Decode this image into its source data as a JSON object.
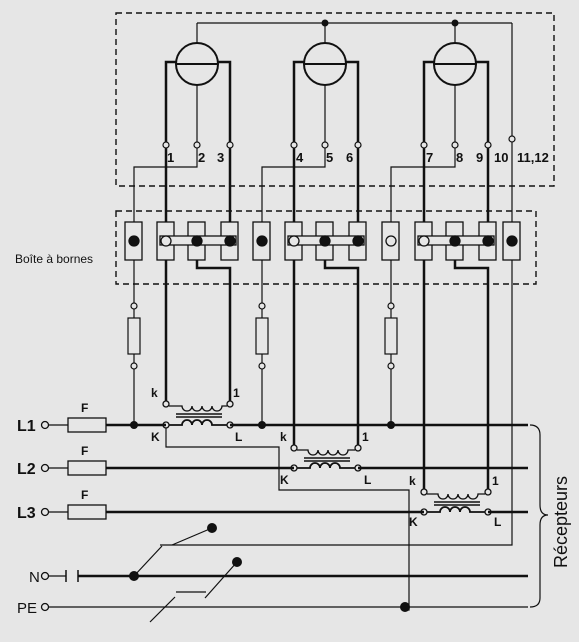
{
  "colors": {
    "background": "#e6e6e6",
    "line": "#111111"
  },
  "meter_box": {
    "terminal_numbers": [
      "1",
      "2",
      "3",
      "4",
      "5",
      "6",
      "7",
      "8",
      "9",
      "10",
      "11,12"
    ]
  },
  "terminal_block": {
    "label": "Boîte à bornes"
  },
  "lines": {
    "l1": "L1",
    "l2": "L2",
    "l3": "L3",
    "neutral": "N",
    "earth": "PE"
  },
  "fuses": {
    "label": "F"
  },
  "transformers": {
    "secondary_k": "k",
    "secondary_l": "1",
    "primary_k": "K",
    "primary_l": "L"
  },
  "loads": {
    "label": "Récepteurs"
  }
}
